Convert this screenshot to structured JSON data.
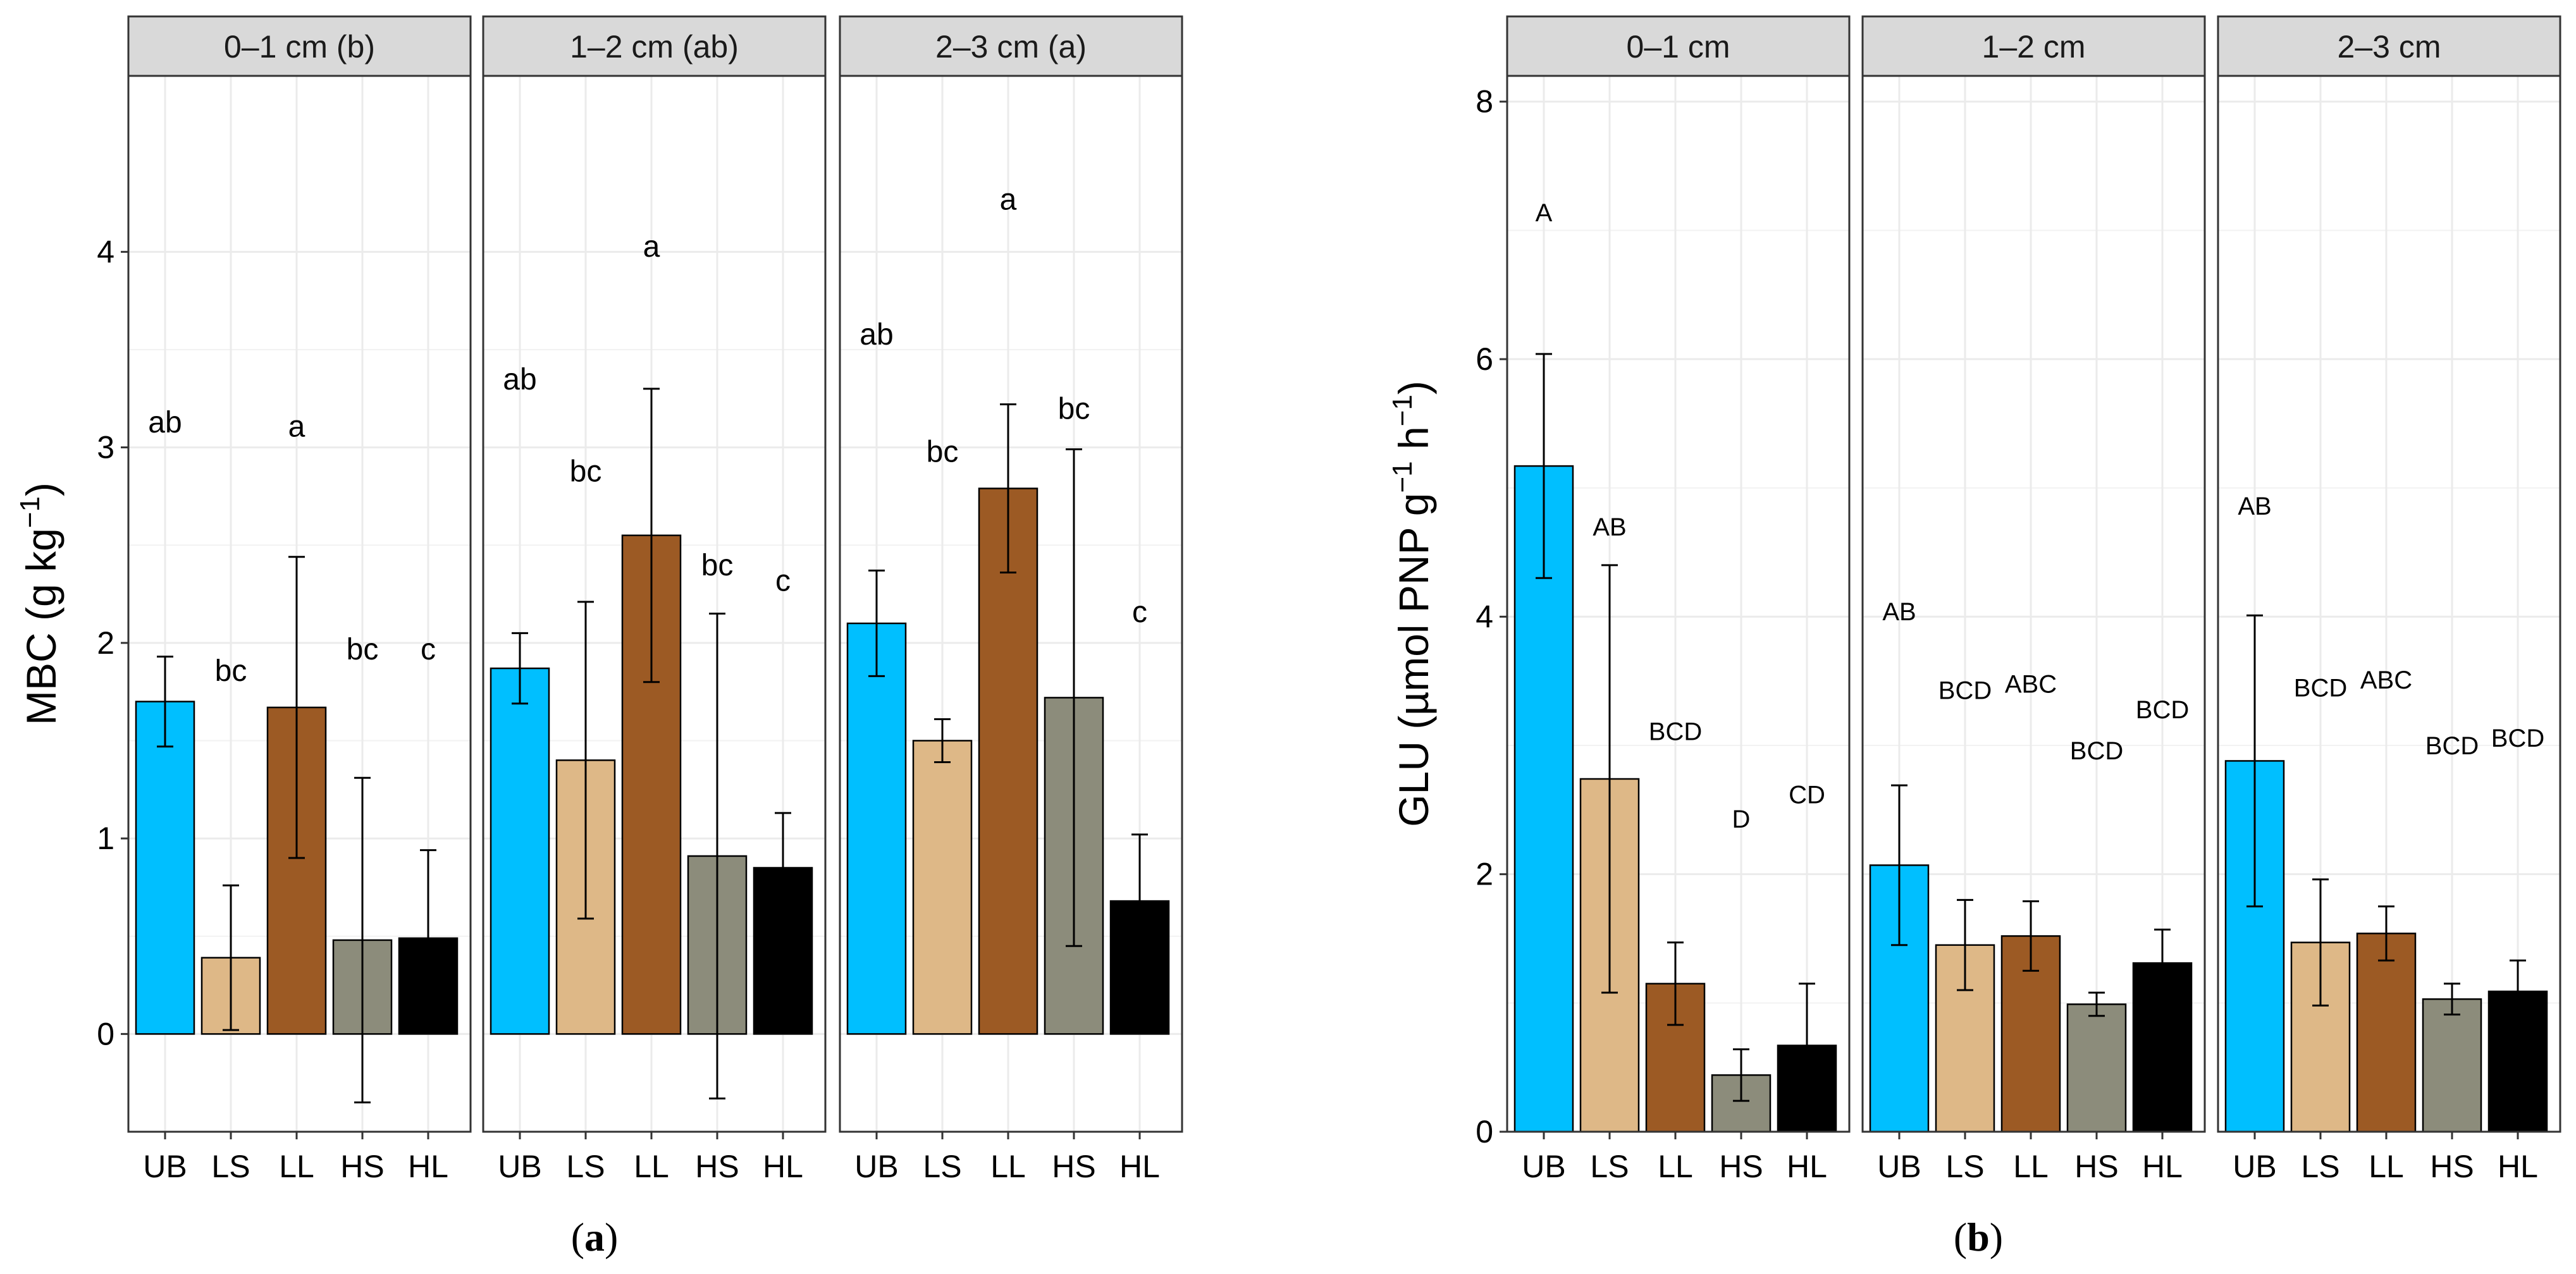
{
  "figure": {
    "label_a": "(a)",
    "label_a_letter": "a",
    "label_b": "(b)",
    "label_b_letter": "b"
  },
  "chart_data": [
    {
      "type": "bar",
      "id": "a",
      "ylabel": "MBC (g kg⁻¹)",
      "ylabel_base": "MBC (g kg",
      "ylabel_sup": "−1",
      "ylabel_end": ")",
      "ylim": [
        -0.5,
        4.9
      ],
      "yticks": [
        0,
        1,
        2,
        3,
        4
      ],
      "categories": [
        "UB",
        "LS",
        "LL",
        "HS",
        "HL"
      ],
      "colors": [
        "#00BFFF",
        "#DEB887",
        "#9C5A24",
        "#8C8C7B",
        "#000000"
      ],
      "grid": true,
      "panels": [
        {
          "title": "0–1 cm (b)",
          "values": [
            1.7,
            0.39,
            1.67,
            0.48,
            0.49
          ],
          "err": [
            0.23,
            0.37,
            0.77,
            0.83,
            0.45
          ],
          "letters": [
            "ab",
            "bc",
            "a",
            "bc",
            "c"
          ],
          "letter_y": [
            3.13,
            1.86,
            3.11,
            1.97,
            1.97
          ]
        },
        {
          "title": "1–2 cm (ab)",
          "values": [
            1.87,
            1.4,
            2.55,
            0.91,
            0.85
          ],
          "err": [
            0.18,
            0.81,
            0.75,
            1.24,
            0.28
          ],
          "letters": [
            "ab",
            "bc",
            "a",
            "bc",
            "c"
          ],
          "letter_y": [
            3.35,
            2.88,
            4.03,
            2.4,
            2.32
          ]
        },
        {
          "title": "2–3 cm (a)",
          "values": [
            2.1,
            1.5,
            2.79,
            1.72,
            0.68
          ],
          "err": [
            0.27,
            0.11,
            0.43,
            1.27,
            0.34
          ],
          "letters": [
            "ab",
            "bc",
            "a",
            "bc",
            "c"
          ],
          "letter_y": [
            3.58,
            2.98,
            4.27,
            3.2,
            2.16
          ]
        }
      ]
    },
    {
      "type": "bar",
      "id": "b",
      "ylabel": "GLU (µmol PNP g⁻¹ h⁻¹)",
      "ylabel_part1": "GLU (µmol PNP g",
      "ylabel_sup1": "−1",
      "ylabel_part2": " h",
      "ylabel_sup2": "−1",
      "ylabel_end": ")",
      "ylim": [
        0,
        8.2
      ],
      "yticks": [
        0,
        2,
        4,
        6,
        8
      ],
      "categories": [
        "UB",
        "LS",
        "LL",
        "HS",
        "HL"
      ],
      "colors": [
        "#00BFFF",
        "#DEB887",
        "#9C5A24",
        "#8C8C7B",
        "#000000"
      ],
      "grid": true,
      "panels": [
        {
          "title": "0–1 cm",
          "values": [
            5.17,
            2.74,
            1.15,
            0.44,
            0.67
          ],
          "err": [
            0.87,
            1.66,
            0.32,
            0.2,
            0.48
          ],
          "letters": [
            "A",
            "AB",
            "BCD",
            "D",
            "CD"
          ],
          "letter_y": [
            7.14,
            4.7,
            3.11,
            2.43,
            2.62
          ]
        },
        {
          "title": "1–2 cm",
          "values": [
            2.07,
            1.45,
            1.52,
            0.99,
            1.31
          ],
          "err": [
            0.62,
            0.35,
            0.27,
            0.09,
            0.26
          ],
          "letters": [
            "AB",
            "BCD",
            "ABC",
            "BCD",
            "BCD"
          ],
          "letter_y": [
            4.04,
            3.43,
            3.48,
            2.96,
            3.28
          ]
        },
        {
          "title": "2–3 cm",
          "values": [
            2.88,
            1.47,
            1.54,
            1.03,
            1.09
          ],
          "err": [
            1.13,
            0.49,
            0.21,
            0.12,
            0.24
          ],
          "letters": [
            "AB",
            "BCD",
            "ABC",
            "BCD",
            "BCD"
          ],
          "letter_y": [
            4.86,
            3.45,
            3.51,
            3.0,
            3.06
          ]
        }
      ]
    }
  ]
}
